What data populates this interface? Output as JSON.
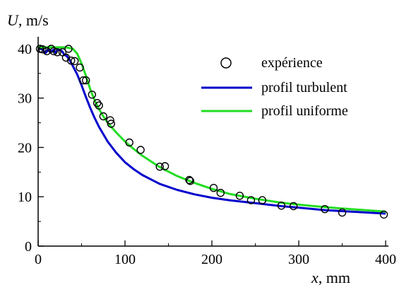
{
  "chart_data": {
    "type": "scatter",
    "xlabel": {
      "var": "x",
      "unit": ", mm"
    },
    "ylabel": {
      "var": "U",
      "unit": ", m/s"
    },
    "xlim": [
      0,
      400
    ],
    "ylim": [
      0,
      42
    ],
    "xticks": [
      0,
      100,
      200,
      300,
      400
    ],
    "xtick_labels": [
      "0",
      "100",
      "200",
      "300",
      "400"
    ],
    "yticks": [
      0,
      10,
      20,
      30,
      40
    ],
    "ytick_labels": [
      "0",
      "10",
      "20",
      "30",
      "40"
    ],
    "grid": false,
    "legend_position": "top-right",
    "series": [
      {
        "name": "expérience",
        "kind": "markers",
        "marker": "open-circle",
        "color": "#000000",
        "x": [
          2,
          5,
          10,
          15,
          18,
          22,
          28,
          32,
          35,
          38,
          42,
          48,
          52,
          55,
          62,
          68,
          70,
          75,
          83,
          84,
          105,
          118,
          140,
          146,
          174,
          175,
          202,
          210,
          232,
          245,
          258,
          280,
          294,
          330,
          350,
          398
        ],
        "y": [
          40.0,
          39.9,
          39.5,
          40.0,
          39.5,
          39.3,
          39.3,
          38.2,
          40.0,
          37.6,
          37.5,
          36.2,
          33.6,
          33.6,
          30.7,
          29.0,
          28.5,
          26.3,
          25.5,
          24.8,
          21.0,
          19.5,
          16.1,
          16.2,
          13.4,
          13.2,
          11.8,
          10.8,
          10.2,
          9.3,
          9.3,
          8.2,
          8.1,
          7.5,
          6.8,
          6.4
        ]
      },
      {
        "name": "profil turbulent",
        "kind": "line",
        "color": "#0000cc",
        "x": [
          0,
          3,
          6,
          8,
          10,
          12,
          14,
          16,
          18,
          20,
          22,
          25,
          28,
          30,
          33,
          36,
          40,
          45,
          50,
          55,
          60,
          65,
          70,
          80,
          90,
          100,
          110,
          120,
          140,
          160,
          180,
          200,
          220,
          250,
          280,
          300,
          330,
          360,
          400
        ],
        "y": [
          40.0,
          40.0,
          39.7,
          39.1,
          39.4,
          40.0,
          39.2,
          39.6,
          39.8,
          39.2,
          39.7,
          39.8,
          39.4,
          38.8,
          38.5,
          37.8,
          36.5,
          34.8,
          32.6,
          30.2,
          28.0,
          26.0,
          24.2,
          21.2,
          18.9,
          17.0,
          15.6,
          14.4,
          12.6,
          11.4,
          10.5,
          9.8,
          9.3,
          8.7,
          8.1,
          7.8,
          7.3,
          7.0,
          6.6
        ]
      },
      {
        "name": "profil uniforme",
        "kind": "line",
        "color": "#22dd22",
        "x": [
          0,
          5,
          10,
          15,
          20,
          25,
          30,
          35,
          40,
          45,
          50,
          55,
          60,
          65,
          70,
          75,
          80,
          90,
          100,
          110,
          120,
          140,
          160,
          180,
          200,
          220,
          250,
          280,
          300,
          330,
          360,
          400
        ],
        "y": [
          40.4,
          40.3,
          40.3,
          40.3,
          40.3,
          40.3,
          40.3,
          40.2,
          40.0,
          39.0,
          37.0,
          34.5,
          31.8,
          29.6,
          27.8,
          26.3,
          25.0,
          23.0,
          21.2,
          19.7,
          18.3,
          16.0,
          14.2,
          12.8,
          11.6,
          10.6,
          9.6,
          8.8,
          8.4,
          7.9,
          7.5,
          7.0
        ]
      }
    ]
  }
}
